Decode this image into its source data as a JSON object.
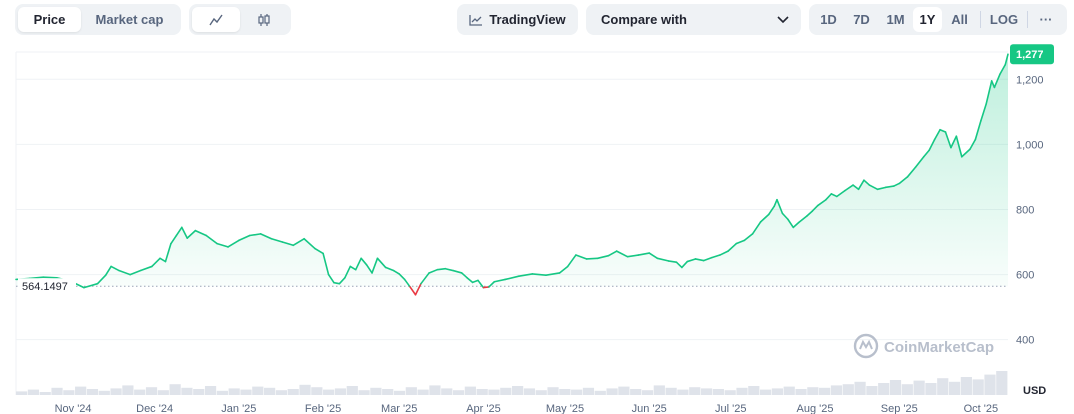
{
  "toolbar": {
    "price_label": "Price",
    "marketcap_label": "Market cap",
    "tradingview_label": "TradingView",
    "compare_label": "Compare with",
    "ranges": [
      "1D",
      "7D",
      "1M",
      "1Y",
      "All"
    ],
    "active_range": "1Y",
    "log_label": "LOG",
    "more_label": "···"
  },
  "icons": {
    "line_chart": "line-chart-icon",
    "candlestick": "candlestick-icon",
    "tradingview": "tradingview-icon",
    "chevron": "chevron-down-icon",
    "more": "more-icon",
    "watermark_logo": "coinmarketcap-logo-icon"
  },
  "watermark": "CoinMarketCap",
  "colors": {
    "up": "#16c784",
    "down": "#ea3943",
    "fill_top": "#16c784",
    "grid": "#eff2f5",
    "volume": "#dfe3ea"
  },
  "chart_data": {
    "type": "area",
    "x_labels": [
      "Nov '24",
      "Dec '24",
      "Jan '25",
      "Feb '25",
      "Mar '25",
      "Apr '25",
      "May '25",
      "Jun '25",
      "Jul '25",
      "Aug '25",
      "Sep '25",
      "Oct '25"
    ],
    "x_label_days": [
      21,
      51,
      82,
      113,
      141,
      172,
      202,
      233,
      263,
      294,
      325,
      355
    ],
    "y_ticks": [
      400,
      600,
      800,
      1000,
      1200
    ],
    "ylim": [
      230,
      1290
    ],
    "xlim": [
      0,
      365
    ],
    "baseline": 564.1497,
    "baseline_label": "564.1497",
    "current_value": 1277,
    "current_label": "1,277",
    "unit_label": "USD",
    "series": [
      {
        "values": [
          [
            0,
            585
          ],
          [
            5,
            588
          ],
          [
            10,
            592
          ],
          [
            15,
            590
          ],
          [
            20,
            580
          ],
          [
            25,
            560
          ],
          [
            30,
            572
          ],
          [
            33,
            598
          ],
          [
            35,
            625
          ],
          [
            38,
            612
          ],
          [
            42,
            600
          ],
          [
            46,
            613
          ],
          [
            50,
            625
          ],
          [
            53,
            650
          ],
          [
            55,
            640
          ],
          [
            57,
            695
          ],
          [
            59,
            720
          ],
          [
            61,
            745
          ],
          [
            63,
            712
          ],
          [
            66,
            735
          ],
          [
            70,
            720
          ],
          [
            74,
            695
          ],
          [
            78,
            685
          ],
          [
            82,
            705
          ],
          [
            86,
            720
          ],
          [
            90,
            725
          ],
          [
            94,
            710
          ],
          [
            98,
            700
          ],
          [
            102,
            690
          ],
          [
            106,
            710
          ],
          [
            110,
            680
          ],
          [
            113,
            665
          ],
          [
            115,
            600
          ],
          [
            117,
            575
          ],
          [
            119,
            572
          ],
          [
            121,
            590
          ],
          [
            123,
            625
          ],
          [
            125,
            615
          ],
          [
            127,
            650
          ],
          [
            129,
            630
          ],
          [
            131,
            605
          ],
          [
            133,
            650
          ],
          [
            136,
            622
          ],
          [
            139,
            612
          ],
          [
            141,
            602
          ],
          [
            143,
            585
          ],
          [
            145,
            562
          ],
          [
            147,
            538
          ],
          [
            149,
            572
          ],
          [
            152,
            605
          ],
          [
            155,
            615
          ],
          [
            158,
            618
          ],
          [
            161,
            612
          ],
          [
            164,
            605
          ],
          [
            166,
            590
          ],
          [
            168,
            576
          ],
          [
            170,
            582
          ],
          [
            172,
            560
          ],
          [
            174,
            562
          ],
          [
            176,
            578
          ],
          [
            180,
            585
          ],
          [
            185,
            595
          ],
          [
            190,
            602
          ],
          [
            195,
            598
          ],
          [
            200,
            605
          ],
          [
            203,
            625
          ],
          [
            206,
            660
          ],
          [
            210,
            648
          ],
          [
            214,
            650
          ],
          [
            218,
            658
          ],
          [
            221,
            672
          ],
          [
            225,
            655
          ],
          [
            229,
            660
          ],
          [
            233,
            666
          ],
          [
            236,
            650
          ],
          [
            240,
            642
          ],
          [
            243,
            638
          ],
          [
            245,
            622
          ],
          [
            247,
            640
          ],
          [
            250,
            648
          ],
          [
            253,
            643
          ],
          [
            256,
            652
          ],
          [
            259,
            660
          ],
          [
            262,
            672
          ],
          [
            265,
            695
          ],
          [
            268,
            705
          ],
          [
            271,
            725
          ],
          [
            274,
            762
          ],
          [
            277,
            785
          ],
          [
            279,
            810
          ],
          [
            280,
            830
          ],
          [
            282,
            788
          ],
          [
            284,
            770
          ],
          [
            286,
            745
          ],
          [
            288,
            760
          ],
          [
            291,
            780
          ],
          [
            293,
            795
          ],
          [
            295,
            812
          ],
          [
            298,
            830
          ],
          [
            300,
            848
          ],
          [
            302,
            840
          ],
          [
            305,
            858
          ],
          [
            308,
            875
          ],
          [
            310,
            862
          ],
          [
            312,
            890
          ],
          [
            314,
            875
          ],
          [
            317,
            862
          ],
          [
            320,
            868
          ],
          [
            323,
            872
          ],
          [
            325,
            880
          ],
          [
            328,
            900
          ],
          [
            331,
            930
          ],
          [
            334,
            962
          ],
          [
            336,
            982
          ],
          [
            338,
            1015
          ],
          [
            340,
            1045
          ],
          [
            342,
            1038
          ],
          [
            344,
            990
          ],
          [
            346,
            1025
          ],
          [
            348,
            962
          ],
          [
            351,
            985
          ],
          [
            353,
            1015
          ],
          [
            355,
            1072
          ],
          [
            357,
            1125
          ],
          [
            359,
            1195
          ],
          [
            360,
            1175
          ],
          [
            362,
            1215
          ],
          [
            364,
            1245
          ],
          [
            365,
            1277
          ]
        ]
      }
    ],
    "volume": [
      6,
      9,
      5,
      12,
      8,
      14,
      10,
      7,
      11,
      16,
      9,
      13,
      8,
      18,
      12,
      10,
      15,
      7,
      11,
      9,
      14,
      12,
      8,
      10,
      17,
      13,
      9,
      11,
      15,
      8,
      12,
      10,
      7,
      13,
      9,
      16,
      11,
      8,
      14,
      10,
      9,
      12,
      15,
      11,
      8,
      13,
      10,
      9,
      12,
      7,
      11,
      14,
      10,
      8,
      16,
      12,
      9,
      13,
      11,
      10,
      8,
      12,
      15,
      9,
      11,
      14,
      10,
      13,
      12,
      16,
      18,
      22,
      15,
      20,
      25,
      18,
      24,
      20,
      28,
      22,
      30,
      26,
      34,
      40
    ]
  }
}
